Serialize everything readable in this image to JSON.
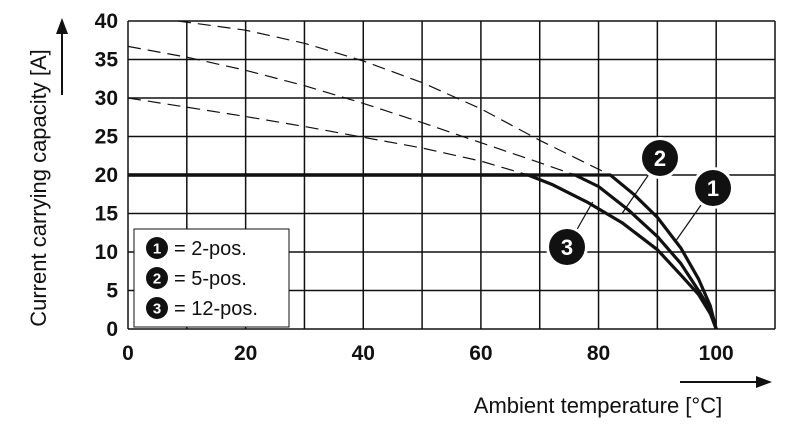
{
  "chart_data": {
    "type": "line",
    "xlabel": "Ambient temperature [°C]",
    "ylabel": "Current carrying capacity [A]",
    "xlim": [
      0,
      110
    ],
    "ylim": [
      0,
      40
    ],
    "x_ticks": [
      0,
      20,
      40,
      60,
      80,
      100
    ],
    "y_ticks": [
      0,
      5,
      10,
      15,
      20,
      25,
      30,
      35,
      40
    ],
    "grid": true,
    "legend_position": "bottom-left",
    "series": [
      {
        "name": "2-pos.",
        "marker": "1",
        "solid": {
          "x": [
            0,
            82,
            86,
            90,
            94,
            97,
            99,
            100
          ],
          "y": [
            20,
            20,
            17.5,
            14.5,
            10.5,
            6.5,
            3,
            0
          ]
        },
        "dashed": {
          "x": [
            8.5,
            20,
            30,
            40,
            50,
            60,
            70,
            78,
            82
          ],
          "y": [
            40,
            38.8,
            37.1,
            34.8,
            32,
            28.6,
            24.5,
            21.5,
            20
          ]
        }
      },
      {
        "name": "5-pos.",
        "marker": "2",
        "solid": {
          "x": [
            0,
            76,
            80,
            85,
            90,
            94,
            97,
            99,
            100
          ],
          "y": [
            20,
            20,
            18.5,
            15.5,
            12,
            8.5,
            5,
            2.5,
            0
          ]
        },
        "dashed": {
          "x": [
            0,
            10,
            20,
            30,
            40,
            50,
            60,
            70,
            76
          ],
          "y": [
            36.7,
            35.3,
            33.6,
            31.6,
            29.3,
            26.8,
            24.2,
            21.6,
            20
          ]
        }
      },
      {
        "name": "12-pos.",
        "marker": "3",
        "solid": {
          "x": [
            0,
            68,
            72,
            78,
            84,
            90,
            94,
            97,
            99,
            100
          ],
          "y": [
            20,
            20,
            18.8,
            16.5,
            13.8,
            10.3,
            7,
            4.5,
            2,
            0
          ]
        },
        "dashed": {
          "x": [
            0,
            10,
            20,
            30,
            40,
            50,
            60,
            68
          ],
          "y": [
            30,
            28.8,
            27.6,
            26.3,
            24.9,
            23.5,
            21.8,
            20
          ]
        }
      }
    ],
    "legend": [
      {
        "marker": "1",
        "text": "= 2-pos."
      },
      {
        "marker": "2",
        "text": "= 5-pos."
      },
      {
        "marker": "3",
        "text": "= 12-pos."
      }
    ],
    "callouts": [
      {
        "marker": "1",
        "at": {
          "x": 93,
          "y": 11.3
        }
      },
      {
        "marker": "2",
        "at": {
          "x": 84,
          "y": 15
        }
      },
      {
        "marker": "3",
        "at": {
          "x": 79,
          "y": 16.5
        }
      }
    ]
  }
}
